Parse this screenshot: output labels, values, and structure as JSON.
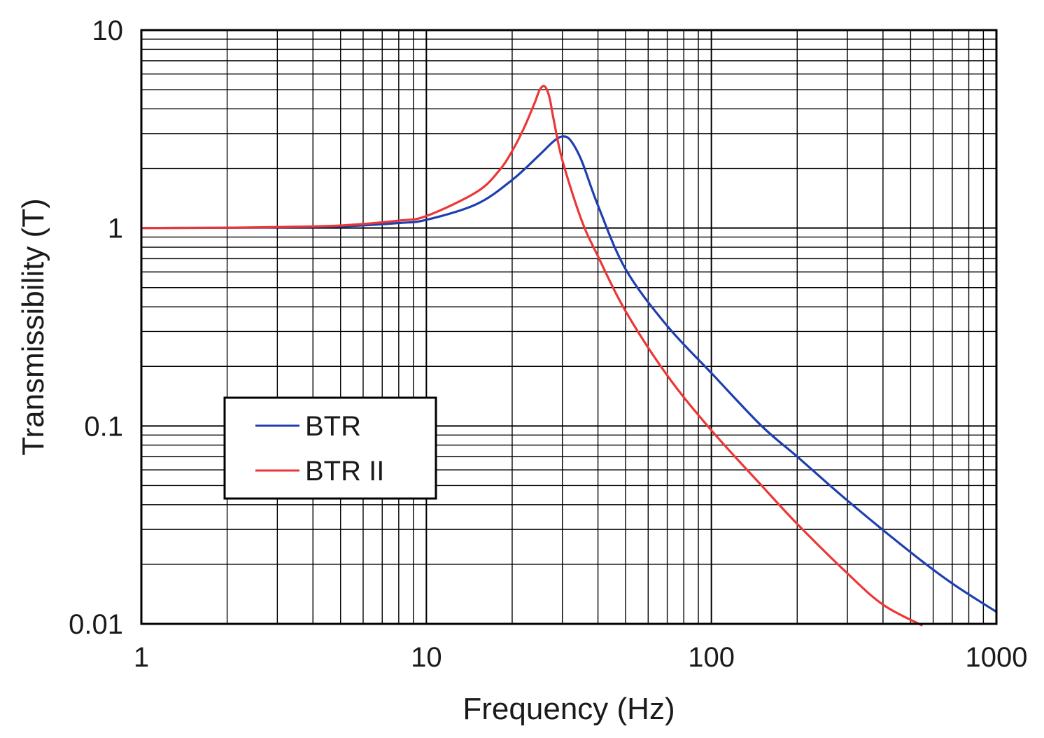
{
  "chart_data": {
    "type": "line",
    "title": "",
    "xlabel": "Frequency (Hz)",
    "ylabel": "Transmissibility (T)",
    "x_scale": "log",
    "y_scale": "log",
    "xlim": [
      1,
      1000
    ],
    "ylim": [
      0.01,
      10
    ],
    "x_ticks": [
      "1",
      "10",
      "100",
      "1000"
    ],
    "y_ticks": [
      "10",
      "1",
      "0.1",
      "0.01"
    ],
    "grid": true,
    "legend_position": "lower-left",
    "series": [
      {
        "name": "BTR",
        "color": "#1f3fb0",
        "x": [
          1,
          2,
          3,
          5,
          8,
          10,
          15,
          20,
          25,
          28,
          30,
          32,
          35,
          40,
          50,
          70,
          100,
          150,
          200,
          300,
          500,
          700,
          1000
        ],
        "y": [
          1.0,
          1.003,
          1.008,
          1.02,
          1.06,
          1.1,
          1.32,
          1.75,
          2.35,
          2.75,
          2.9,
          2.78,
          2.2,
          1.3,
          0.62,
          0.32,
          0.185,
          0.1,
          0.07,
          0.042,
          0.023,
          0.016,
          0.0115
        ]
      },
      {
        "name": "BTR II",
        "color": "#ec3737",
        "x": [
          1,
          2,
          3,
          5,
          8,
          10,
          15,
          18,
          20,
          22,
          24,
          25,
          26,
          27,
          28,
          30,
          35,
          40,
          50,
          70,
          100,
          150,
          200,
          300,
          400,
          550
        ],
        "y": [
          1.0,
          1.004,
          1.012,
          1.03,
          1.09,
          1.15,
          1.52,
          1.95,
          2.45,
          3.2,
          4.3,
          5.0,
          5.2,
          4.6,
          3.5,
          2.2,
          1.1,
          0.72,
          0.38,
          0.18,
          0.095,
          0.05,
          0.032,
          0.018,
          0.0125,
          0.0098
        ]
      }
    ]
  }
}
